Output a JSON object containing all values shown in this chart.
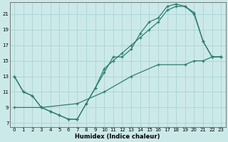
{
  "xlabel": "Humidex (Indice chaleur)",
  "bg_color": "#cce9e9",
  "line_color": "#2e7d6e",
  "grid_color": "#aad4d4",
  "xlim": [
    -0.5,
    23.5
  ],
  "ylim": [
    6.5,
    22.5
  ],
  "xticks": [
    0,
    1,
    2,
    3,
    4,
    5,
    6,
    7,
    8,
    9,
    10,
    11,
    12,
    13,
    14,
    15,
    16,
    17,
    18,
    19,
    20,
    21,
    22,
    23
  ],
  "yticks": [
    7,
    9,
    11,
    13,
    15,
    17,
    19,
    21
  ],
  "line1_x": [
    0,
    1,
    2,
    3,
    4,
    5,
    6,
    7,
    8,
    9,
    10,
    11,
    12,
    13,
    14,
    15,
    16,
    17,
    18,
    19,
    20,
    21,
    22,
    23
  ],
  "line1_y": [
    13,
    11,
    10.5,
    9,
    8.5,
    8,
    7.5,
    7.5,
    9.5,
    11.5,
    13.5,
    15.5,
    15.5,
    16.5,
    18.5,
    20,
    20.5,
    22,
    22.3,
    22,
    21,
    17.5,
    15.5,
    15.5
  ],
  "line2_x": [
    0,
    1,
    2,
    3,
    4,
    5,
    6,
    7,
    8,
    9,
    10,
    11,
    12,
    13,
    14,
    15,
    16,
    17,
    18,
    19,
    20,
    21,
    22,
    23
  ],
  "line2_y": [
    13,
    11,
    10.5,
    9,
    8.5,
    8,
    7.5,
    7.5,
    9.5,
    11.5,
    14,
    15,
    16,
    17,
    18,
    19,
    20,
    21.5,
    22,
    22,
    21.2,
    17.5,
    15.5,
    15.5
  ],
  "line3_x": [
    0,
    3,
    7,
    10,
    13,
    16,
    19,
    20,
    21,
    22,
    23
  ],
  "line3_y": [
    9,
    9,
    9.5,
    11,
    13,
    14.5,
    14.5,
    15,
    15,
    15.5,
    15.5
  ]
}
